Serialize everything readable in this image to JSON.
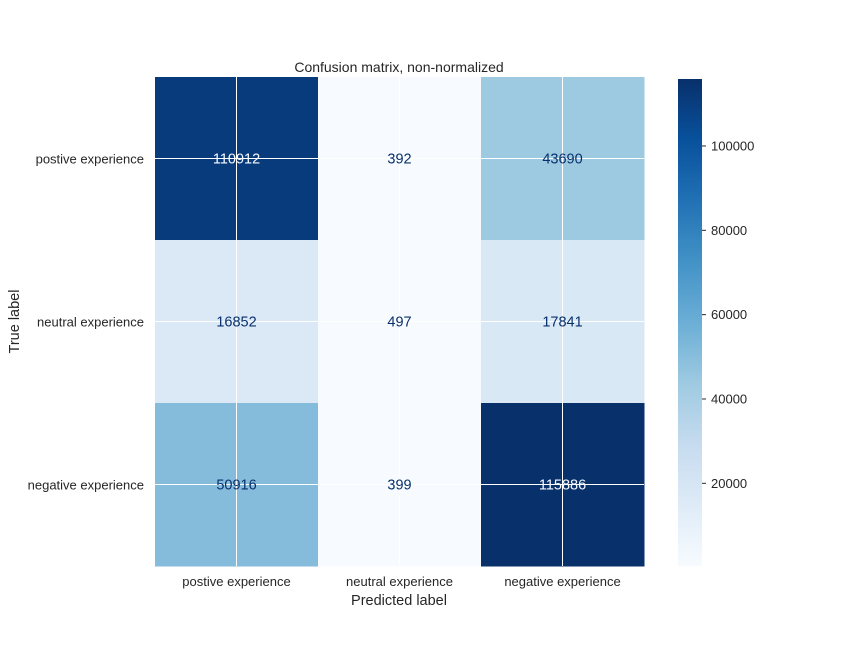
{
  "chart_data": {
    "type": "heatmap",
    "title": "Confusion matrix,  non-normalized",
    "xlabel": "Predicted label",
    "ylabel": "True label",
    "x_categories": [
      "postive experience",
      "neutral experience",
      "negative experience"
    ],
    "y_categories": [
      "postive experience",
      "neutral experience",
      "negative experience"
    ],
    "values": [
      [
        110912,
        392,
        43690
      ],
      [
        16852,
        497,
        17841
      ],
      [
        50916,
        399,
        115886
      ]
    ],
    "colormap": "Blues",
    "color_range": [
      392,
      115886
    ],
    "colorbar": {
      "ticks": [
        20000,
        40000,
        60000,
        80000,
        100000
      ],
      "tick_labels": [
        "20000",
        "40000",
        "60000",
        "80000",
        "100000"
      ]
    },
    "grid": true,
    "text_color_dark": "#08306b",
    "text_color_light": "#f7fbff"
  }
}
